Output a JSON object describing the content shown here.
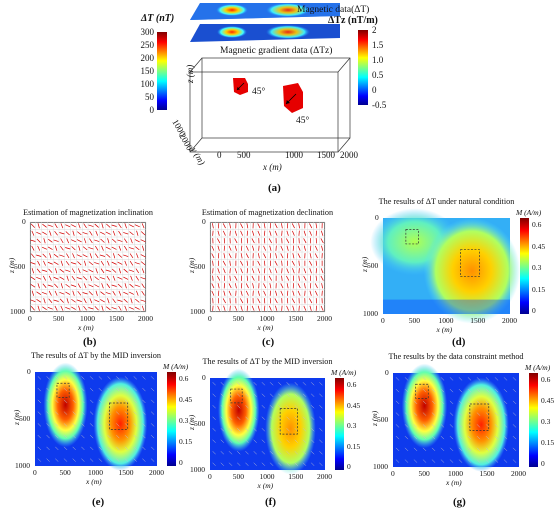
{
  "figure_a": {
    "caption": "(a)",
    "cb_left": {
      "title": "ΔT (nT)",
      "ticks": [
        "300",
        "250",
        "200",
        "150",
        "100",
        "50",
        "0"
      ]
    },
    "cb_right": {
      "title": "ΔTz (nT/m)",
      "ticks": [
        "2",
        "1.5",
        "1.0",
        "0.5",
        "0",
        "-0.5"
      ]
    },
    "magnetic_label": "Magnetic data(ΔT)",
    "gradient_label": "Magnetic gradient data (ΔTz)",
    "z_axis": "z (m)",
    "y_axis": "y (m)",
    "x_axis": "x (m)",
    "x_ticks": [
      "0",
      "500",
      "1000",
      "1500",
      "2000"
    ],
    "y_ticks": [
      "2000",
      "1000"
    ],
    "angle_small": "45°",
    "angle_large": "45°"
  },
  "panel_b": {
    "title": "Estimation of magnetization inclination",
    "caption": "(b)",
    "x_axis": "x (m)",
    "y_axis": "z (m)",
    "x_ticks": [
      "0",
      "500",
      "1000",
      "1500",
      "2000"
    ],
    "y_ticks": [
      "0",
      "500",
      "1000"
    ]
  },
  "panel_c": {
    "title": "Estimation of magnetization declination",
    "caption": "(c)",
    "x_axis": "x (m)",
    "y_axis": "z (m)",
    "x_ticks": [
      "0",
      "500",
      "1000",
      "1500",
      "2000"
    ],
    "y_ticks": [
      "0",
      "500",
      "1000"
    ]
  },
  "panel_d": {
    "title": "The results of ΔT under natural condition",
    "caption": "(d)",
    "cb_title": "M (A/m)",
    "cb_ticks": [
      "0.6",
      "0.45",
      "0.3",
      "0.15",
      "0"
    ],
    "x_axis": "x (m)",
    "y_axis": "z (m)",
    "x_ticks": [
      "0",
      "500",
      "1000",
      "1500",
      "2000"
    ],
    "y_ticks": [
      "0",
      "500",
      "1000"
    ]
  },
  "panel_e": {
    "title": "The results of ΔT by the MID inversion",
    "caption": "(e)",
    "cb_title": "M (A/m)",
    "cb_ticks": [
      "0.6",
      "0.45",
      "0.3",
      "0.15",
      "0"
    ],
    "x_axis": "x (m)",
    "y_axis": "z (m)",
    "x_ticks": [
      "0",
      "500",
      "1000",
      "1500",
      "2000"
    ],
    "y_ticks": [
      "0",
      "500",
      "1000"
    ]
  },
  "panel_f": {
    "title": "The results of ΔT by the MID inversion",
    "caption": "(f)",
    "cb_title": "M (A/m)",
    "cb_ticks": [
      "0.6",
      "0.45",
      "0.3",
      "0.15",
      "0"
    ],
    "x_axis": "x (m)",
    "y_axis": "z (m)",
    "x_ticks": [
      "0",
      "500",
      "1000",
      "1500",
      "2000"
    ],
    "y_ticks": [
      "0",
      "500",
      "1000"
    ]
  },
  "panel_g": {
    "title": "The results by the data constraint method",
    "caption": "(g)",
    "cb_title": "M (A/m)",
    "cb_ticks": [
      "0.6",
      "0.45",
      "0.3",
      "0.15",
      "0"
    ],
    "x_axis": "x (m)",
    "y_axis": "z (m)",
    "x_ticks": [
      "0",
      "500",
      "1000",
      "1500",
      "2000"
    ],
    "y_ticks": [
      "0",
      "500",
      "1000"
    ]
  },
  "colors": {
    "jet": [
      "#00008f",
      "#0000ff",
      "#0080ff",
      "#00ffff",
      "#80ff80",
      "#ffff00",
      "#ff8000",
      "#ff0000",
      "#800000"
    ],
    "block": "#e60000",
    "arrow": "#cc0000"
  }
}
